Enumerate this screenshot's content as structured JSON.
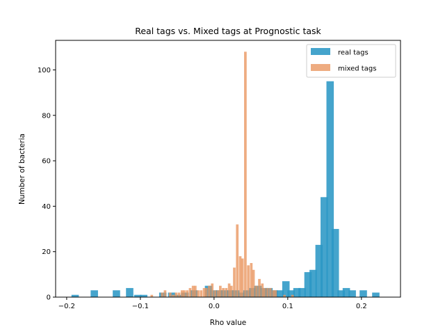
{
  "chart_data": {
    "type": "bar",
    "title": "Real tags vs. Mixed tags at Prognostic task",
    "xlabel": "Rho value",
    "ylabel": "Number of bacteria",
    "xlim": [
      -0.215,
      0.253
    ],
    "ylim": [
      0,
      113
    ],
    "xticks": [
      -0.2,
      -0.1,
      0.0,
      0.1,
      0.2
    ],
    "xtick_labels": [
      "−0.2",
      "−0.1",
      "0.0",
      "0.1",
      "0.2"
    ],
    "yticks": [
      0,
      20,
      40,
      60,
      80,
      100
    ],
    "ytick_labels": [
      "0",
      "20",
      "40",
      "60",
      "80",
      "100"
    ],
    "grid": false,
    "legend_position": "top-right",
    "series": [
      {
        "name": "real tags",
        "color": "#2b97c5",
        "opacity": 0.88,
        "bin_width": 0.01,
        "bars": [
          {
            "x": -0.1885,
            "y": 1
          },
          {
            "x": -0.1625,
            "y": 3
          },
          {
            "x": -0.1325,
            "y": 3
          },
          {
            "x": -0.1145,
            "y": 4
          },
          {
            "x": -0.1035,
            "y": 1
          },
          {
            "x": -0.0955,
            "y": 1
          },
          {
            "x": -0.0695,
            "y": 2
          },
          {
            "x": -0.0575,
            "y": 2
          },
          {
            "x": -0.0475,
            "y": 1
          },
          {
            "x": -0.0395,
            "y": 2
          },
          {
            "x": -0.0275,
            "y": 3
          },
          {
            "x": -0.0075,
            "y": 5
          },
          {
            "x": -0.0005,
            "y": 3
          },
          {
            "x": 0.0075,
            "y": 3
          },
          {
            "x": 0.0145,
            "y": 3
          },
          {
            "x": 0.0225,
            "y": 3
          },
          {
            "x": 0.0295,
            "y": 3
          },
          {
            "x": 0.0375,
            "y": 2
          },
          {
            "x": 0.0445,
            "y": 3
          },
          {
            "x": 0.0525,
            "y": 4
          },
          {
            "x": 0.0595,
            "y": 5
          },
          {
            "x": 0.0675,
            "y": 4
          },
          {
            "x": 0.0745,
            "y": 4
          },
          {
            "x": 0.0815,
            "y": 3
          },
          {
            "x": 0.0895,
            "y": 3
          },
          {
            "x": 0.0975,
            "y": 7
          },
          {
            "x": 0.1045,
            "y": 3
          },
          {
            "x": 0.1125,
            "y": 4
          },
          {
            "x": 0.1195,
            "y": 4
          },
          {
            "x": 0.1275,
            "y": 11
          },
          {
            "x": 0.1345,
            "y": 12
          },
          {
            "x": 0.1425,
            "y": 23
          },
          {
            "x": 0.1495,
            "y": 44
          },
          {
            "x": 0.1575,
            "y": 95
          },
          {
            "x": 0.1645,
            "y": 30
          },
          {
            "x": 0.1725,
            "y": 3
          },
          {
            "x": 0.1795,
            "y": 4
          },
          {
            "x": 0.1875,
            "y": 3
          },
          {
            "x": 0.2025,
            "y": 3
          },
          {
            "x": 0.2195,
            "y": 2
          }
        ]
      },
      {
        "name": "mixed tags",
        "color": "#e9955e",
        "opacity": 0.78,
        "bin_width": 0.0035,
        "bars": [
          {
            "x": -0.0845,
            "y": 1
          },
          {
            "x": -0.0705,
            "y": 2
          },
          {
            "x": -0.0665,
            "y": 3
          },
          {
            "x": -0.0595,
            "y": 2
          },
          {
            "x": -0.0555,
            "y": 1
          },
          {
            "x": -0.0515,
            "y": 2
          },
          {
            "x": -0.0475,
            "y": 2
          },
          {
            "x": -0.0435,
            "y": 3
          },
          {
            "x": -0.0405,
            "y": 3
          },
          {
            "x": -0.0365,
            "y": 3
          },
          {
            "x": -0.0325,
            "y": 4
          },
          {
            "x": -0.0285,
            "y": 5
          },
          {
            "x": -0.0255,
            "y": 5
          },
          {
            "x": -0.0215,
            "y": 3
          },
          {
            "x": -0.0175,
            "y": 3
          },
          {
            "x": -0.0135,
            "y": 4
          },
          {
            "x": -0.0105,
            "y": 4
          },
          {
            "x": -0.0065,
            "y": 5
          },
          {
            "x": -0.0025,
            "y": 6
          },
          {
            "x": 0.0015,
            "y": 3
          },
          {
            "x": 0.0055,
            "y": 3
          },
          {
            "x": 0.0085,
            "y": 5
          },
          {
            "x": 0.0125,
            "y": 4
          },
          {
            "x": 0.0165,
            "y": 4
          },
          {
            "x": 0.0205,
            "y": 6
          },
          {
            "x": 0.0235,
            "y": 5
          },
          {
            "x": 0.0275,
            "y": 13
          },
          {
            "x": 0.0315,
            "y": 32
          },
          {
            "x": 0.0355,
            "y": 18
          },
          {
            "x": 0.0385,
            "y": 17
          },
          {
            "x": 0.0425,
            "y": 108
          },
          {
            "x": 0.0465,
            "y": 14
          },
          {
            "x": 0.0505,
            "y": 15
          },
          {
            "x": 0.0535,
            "y": 12
          },
          {
            "x": 0.0575,
            "y": 5
          },
          {
            "x": 0.0615,
            "y": 8
          },
          {
            "x": 0.0655,
            "y": 6
          },
          {
            "x": 0.0685,
            "y": 4
          },
          {
            "x": 0.0725,
            "y": 4
          },
          {
            "x": 0.0765,
            "y": 4
          },
          {
            "x": 0.0805,
            "y": 3
          },
          {
            "x": 0.0835,
            "y": 3
          },
          {
            "x": 0.0955,
            "y": 1
          },
          {
            "x": 0.1065,
            "y": 1
          }
        ]
      }
    ]
  }
}
